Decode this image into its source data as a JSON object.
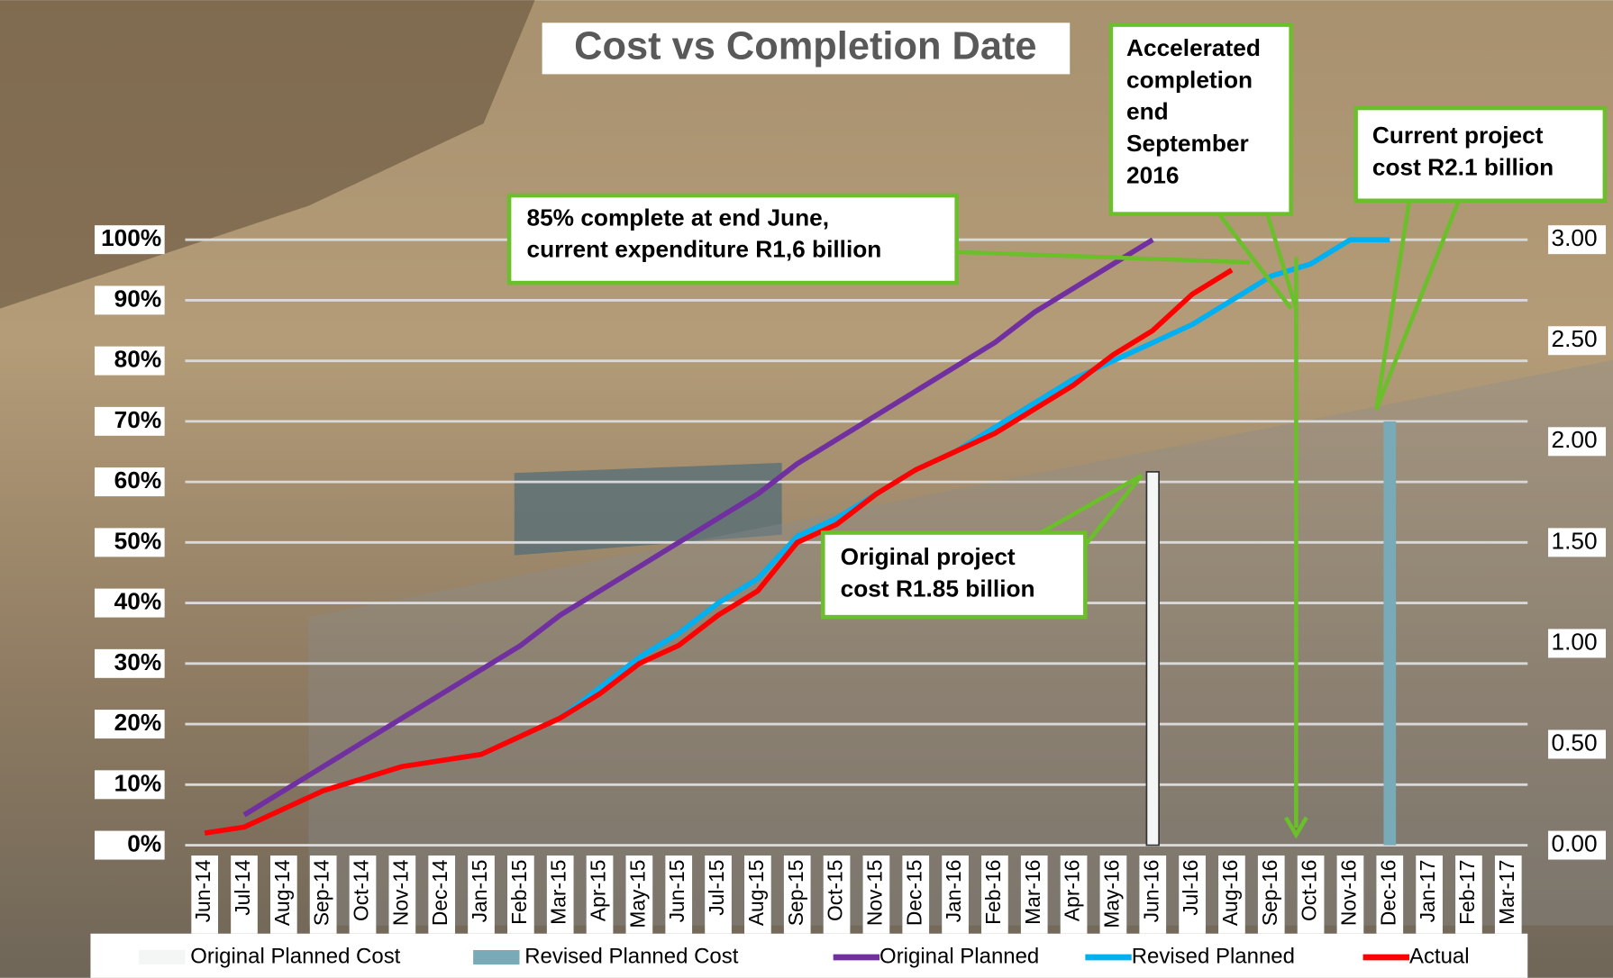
{
  "chart_data": {
    "type": "combo",
    "title": "Cost vs Completion Date",
    "categories": [
      "Jun-14",
      "Jul-14",
      "Aug-14",
      "Sep-14",
      "Oct-14",
      "Nov-14",
      "Dec-14",
      "Jan-15",
      "Feb-15",
      "Mar-15",
      "Apr-15",
      "May-15",
      "Jun-15",
      "Jul-15",
      "Aug-15",
      "Sep-15",
      "Oct-15",
      "Nov-15",
      "Dec-15",
      "Jan-16",
      "Feb-16",
      "Mar-16",
      "Apr-16",
      "May-16",
      "Jun-16",
      "Jul-16",
      "Aug-16",
      "Sep-16",
      "Oct-16",
      "Nov-16",
      "Dec-16",
      "Jan-17",
      "Feb-17",
      "Mar-17"
    ],
    "ylim": [
      0,
      100
    ],
    "yticks": [
      {
        "value": 0,
        "label": "0%"
      },
      {
        "value": 10,
        "label": "10%"
      },
      {
        "value": 20,
        "label": "20%"
      },
      {
        "value": 30,
        "label": "30%"
      },
      {
        "value": 40,
        "label": "40%"
      },
      {
        "value": 50,
        "label": "50%"
      },
      {
        "value": 60,
        "label": "60%"
      },
      {
        "value": 70,
        "label": "70%"
      },
      {
        "value": 80,
        "label": "80%"
      },
      {
        "value": 90,
        "label": "90%"
      },
      {
        "value": 100,
        "label": "100%"
      }
    ],
    "y2lim": [
      0,
      3
    ],
    "y2ticks": [
      {
        "value": 0,
        "label": "0.00"
      },
      {
        "value": 0.5,
        "label": "0.50"
      },
      {
        "value": 1,
        "label": "1.00"
      },
      {
        "value": 1.5,
        "label": "1.50"
      },
      {
        "value": 2,
        "label": "2.00"
      },
      {
        "value": 2.5,
        "label": "2.50"
      },
      {
        "value": 3,
        "label": "3.00"
      }
    ],
    "grid": true,
    "legend": "bottom",
    "series": [
      {
        "name": "Original Planned Cost",
        "type": "bar",
        "axis": "y2",
        "color": "#f4f6f6",
        "values": [
          null,
          null,
          null,
          null,
          null,
          null,
          null,
          null,
          null,
          null,
          null,
          null,
          null,
          null,
          null,
          null,
          null,
          null,
          null,
          null,
          null,
          null,
          null,
          null,
          1.85,
          null,
          null,
          null,
          null,
          null,
          null,
          null,
          null,
          null
        ]
      },
      {
        "name": "Revised Planned Cost",
        "type": "bar",
        "axis": "y2",
        "color": "#78aab8",
        "values": [
          null,
          null,
          null,
          null,
          null,
          null,
          null,
          null,
          null,
          null,
          null,
          null,
          null,
          null,
          null,
          null,
          null,
          null,
          null,
          null,
          null,
          null,
          null,
          null,
          null,
          null,
          null,
          null,
          null,
          null,
          2.1,
          null,
          null,
          null
        ]
      },
      {
        "name": "Original Planned",
        "type": "line",
        "color": "#7030a0",
        "values": [
          null,
          5,
          9,
          13,
          17,
          21,
          25,
          29,
          33,
          38,
          42,
          46,
          50,
          54,
          58,
          63,
          67,
          71,
          75,
          79,
          83,
          88,
          92,
          96,
          100,
          null,
          null,
          null,
          null,
          null,
          null,
          null,
          null,
          null
        ]
      },
      {
        "name": "Revised Planned",
        "type": "line",
        "color": "#00b0f0",
        "values": [
          2,
          3,
          6,
          9,
          11,
          13,
          14,
          15,
          18,
          21,
          26,
          31,
          35,
          40,
          44,
          51,
          54,
          58,
          62,
          65,
          69,
          73,
          77,
          80,
          83,
          86,
          90,
          94,
          96,
          100,
          100,
          null,
          null,
          null
        ]
      },
      {
        "name": "Actual",
        "type": "line",
        "color": "#ff0000",
        "values": [
          2,
          3,
          6,
          9,
          11,
          13,
          14,
          15,
          18,
          21,
          25,
          30,
          33,
          38,
          42,
          50,
          53,
          58,
          62,
          65,
          68,
          72,
          76,
          81,
          85,
          91,
          95,
          null,
          null,
          null,
          null,
          null,
          null,
          null
        ]
      }
    ],
    "annotations": [
      {
        "lines": [
          "85% complete at end June,",
          "current expenditure R1,6 billion"
        ]
      },
      {
        "lines": [
          "Accelerated",
          "completion",
          "end",
          "September",
          "2016"
        ]
      },
      {
        "lines": [
          "Current  project",
          "cost R2.1 billion"
        ]
      },
      {
        "lines": [
          "Original project",
          "cost R1.85 billion"
        ]
      }
    ]
  }
}
